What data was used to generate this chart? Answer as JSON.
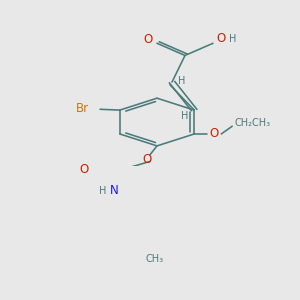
{
  "bg_color": "#e8e8e8",
  "C": "#4a7a7a",
  "O": "#cc2200",
  "N": "#1a1aee",
  "Br": "#cc7700",
  "H": "#4a7a7a",
  "bond": "#4a7a7a",
  "fs_main": 8.5,
  "fs_small": 7.0,
  "lw": 1.15
}
